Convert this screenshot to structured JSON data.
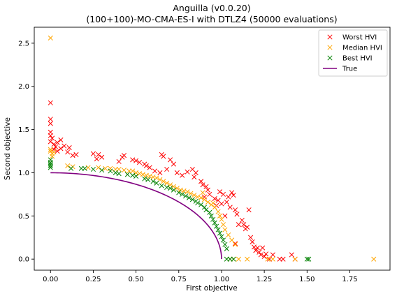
{
  "chart_data": {
    "type": "scatter",
    "title": "Anguilla (v0.0.20)",
    "subtitle": "(100+100)-MO-CMA-ES-I with DTLZ4 (50000 evaluations)",
    "xlabel": "First objective",
    "ylabel": "Second objective",
    "xlim": [
      -0.095,
      1.985
    ],
    "ylim": [
      -0.128,
      2.685
    ],
    "x_ticks": [
      "0.00",
      "0.25",
      "0.50",
      "0.75",
      "1.00",
      "1.25",
      "1.50",
      "1.75"
    ],
    "x_tick_values": [
      0,
      0.25,
      0.5,
      0.75,
      1.0,
      1.25,
      1.5,
      1.75
    ],
    "y_ticks": [
      "0.0",
      "0.5",
      "1.0",
      "1.5",
      "2.0",
      "2.5"
    ],
    "y_tick_values": [
      0,
      0.5,
      1.0,
      1.5,
      2.0,
      2.5
    ],
    "grid": false,
    "legend_position": "top-right",
    "series": [
      {
        "name": "Worst HVI",
        "marker": "x",
        "color": "#ff0000",
        "points": [
          [
            0.0,
            1.81
          ],
          [
            0.0,
            1.62
          ],
          [
            0.0,
            1.57
          ],
          [
            0.0,
            1.47
          ],
          [
            0.0,
            1.43
          ],
          [
            0.01,
            1.4
          ],
          [
            0.0,
            1.36
          ],
          [
            0.02,
            1.33
          ],
          [
            0.03,
            1.3
          ],
          [
            0.02,
            1.27
          ],
          [
            0.04,
            1.25
          ],
          [
            0.06,
            1.28
          ],
          [
            0.08,
            1.31
          ],
          [
            0.1,
            1.24
          ],
          [
            0.06,
            1.38
          ],
          [
            0.04,
            1.35
          ],
          [
            0.11,
            1.29
          ],
          [
            0.15,
            1.21
          ],
          [
            0.13,
            1.2
          ],
          [
            0.25,
            1.22
          ],
          [
            0.28,
            1.21
          ],
          [
            0.3,
            1.18
          ],
          [
            0.27,
            1.16
          ],
          [
            0.42,
            1.18
          ],
          [
            0.43,
            1.2
          ],
          [
            0.4,
            1.13
          ],
          [
            0.48,
            1.15
          ],
          [
            0.5,
            1.14
          ],
          [
            0.52,
            1.12
          ],
          [
            0.55,
            1.1
          ],
          [
            0.56,
            1.08
          ],
          [
            0.58,
            1.06
          ],
          [
            0.61,
            1.02
          ],
          [
            0.64,
            1.0
          ],
          [
            0.65,
            1.21
          ],
          [
            0.66,
            1.19
          ],
          [
            0.7,
            1.15
          ],
          [
            0.72,
            1.1
          ],
          [
            0.68,
            1.04
          ],
          [
            0.74,
            1.0
          ],
          [
            0.77,
            0.97
          ],
          [
            0.8,
            1.01
          ],
          [
            0.83,
            1.04
          ],
          [
            0.85,
            1.0
          ],
          [
            0.84,
            0.95
          ],
          [
            0.88,
            0.9
          ],
          [
            0.89,
            0.86
          ],
          [
            0.91,
            0.84
          ],
          [
            0.92,
            0.8
          ],
          [
            0.93,
            0.75
          ],
          [
            0.9,
            0.72
          ],
          [
            0.96,
            0.7
          ],
          [
            0.98,
            0.68
          ],
          [
            0.99,
            0.78
          ],
          [
            1.01,
            0.75
          ],
          [
            1.03,
            0.66
          ],
          [
            1.04,
            0.72
          ],
          [
            1.05,
            0.6
          ],
          [
            1.06,
            0.77
          ],
          [
            1.07,
            0.74
          ],
          [
            1.02,
            0.5
          ],
          [
            1.08,
            0.57
          ],
          [
            1.09,
            0.52
          ],
          [
            1.1,
            0.4
          ],
          [
            1.12,
            0.45
          ],
          [
            1.13,
            0.4
          ],
          [
            1.14,
            0.35
          ],
          [
            1.15,
            0.37
          ],
          [
            1.16,
            0.57
          ],
          [
            1.17,
            0.25
          ],
          [
            1.18,
            0.2
          ],
          [
            1.19,
            0.14
          ],
          [
            1.2,
            0.1
          ],
          [
            1.21,
            0.13
          ],
          [
            1.22,
            0.08
          ],
          [
            1.23,
            0.05
          ],
          [
            1.24,
            0.13
          ],
          [
            1.25,
            0.03
          ],
          [
            1.26,
            0.06
          ],
          [
            1.28,
            0.0
          ],
          [
            1.3,
            0.05
          ],
          [
            1.34,
            0.0
          ],
          [
            1.36,
            0.0
          ],
          [
            1.41,
            0.05
          ],
          [
            1.43,
            0.0
          ],
          [
            1.0,
            0.64
          ],
          [
            1.08,
            0.18
          ],
          [
            0.97,
            0.62
          ]
        ]
      },
      {
        "name": "Median HVI",
        "marker": "x",
        "color": "#ffa500",
        "points": [
          [
            0.0,
            2.56
          ],
          [
            0.0,
            1.27
          ],
          [
            0.0,
            1.25
          ],
          [
            0.01,
            1.22
          ],
          [
            0.02,
            1.24
          ],
          [
            0.01,
            1.19
          ],
          [
            0.1,
            1.08
          ],
          [
            0.13,
            1.07
          ],
          [
            0.22,
            1.06
          ],
          [
            0.28,
            1.06
          ],
          [
            0.32,
            1.05
          ],
          [
            0.35,
            1.05
          ],
          [
            0.38,
            1.04
          ],
          [
            0.4,
            1.04
          ],
          [
            0.43,
            1.03
          ],
          [
            0.46,
            1.02
          ],
          [
            0.48,
            1.02
          ],
          [
            0.5,
            1.0
          ],
          [
            0.52,
            0.99
          ],
          [
            0.54,
            0.98
          ],
          [
            0.56,
            0.97
          ],
          [
            0.58,
            0.96
          ],
          [
            0.6,
            0.95
          ],
          [
            0.62,
            0.94
          ],
          [
            0.64,
            0.92
          ],
          [
            0.66,
            0.9
          ],
          [
            0.68,
            0.88
          ],
          [
            0.7,
            0.86
          ],
          [
            0.72,
            0.84
          ],
          [
            0.74,
            0.82
          ],
          [
            0.76,
            0.8
          ],
          [
            0.78,
            0.79
          ],
          [
            0.8,
            0.78
          ],
          [
            0.82,
            0.76
          ],
          [
            0.84,
            0.74
          ],
          [
            0.86,
            0.72
          ],
          [
            0.88,
            0.71
          ],
          [
            0.9,
            0.69
          ],
          [
            0.92,
            0.66
          ],
          [
            0.94,
            0.63
          ],
          [
            0.96,
            0.6
          ],
          [
            0.98,
            0.55
          ],
          [
            0.99,
            0.5
          ],
          [
            1.0,
            0.46
          ],
          [
            1.01,
            0.4
          ],
          [
            1.02,
            0.34
          ],
          [
            1.04,
            0.28
          ],
          [
            1.06,
            0.22
          ],
          [
            1.08,
            0.17
          ],
          [
            1.05,
            0.0
          ],
          [
            1.07,
            0.0
          ],
          [
            1.1,
            0.0
          ],
          [
            1.15,
            0.0
          ],
          [
            1.27,
            0.0
          ],
          [
            1.3,
            0.0
          ],
          [
            1.43,
            0.0
          ],
          [
            1.89,
            0.0
          ],
          [
            0.89,
            0.77
          ],
          [
            0.95,
            0.65
          ]
        ]
      },
      {
        "name": "Best HVI",
        "marker": "x",
        "color": "#008000",
        "points": [
          [
            0.0,
            1.15
          ],
          [
            0.0,
            1.12
          ],
          [
            0.0,
            1.1
          ],
          [
            0.0,
            1.08
          ],
          [
            0.0,
            1.06
          ],
          [
            0.12,
            1.05
          ],
          [
            0.18,
            1.05
          ],
          [
            0.2,
            1.05
          ],
          [
            0.25,
            1.04
          ],
          [
            0.3,
            1.03
          ],
          [
            0.35,
            1.02
          ],
          [
            0.38,
            1.0
          ],
          [
            0.4,
            0.99
          ],
          [
            0.45,
            0.98
          ],
          [
            0.48,
            0.97
          ],
          [
            0.5,
            0.96
          ],
          [
            0.55,
            0.93
          ],
          [
            0.57,
            0.92
          ],
          [
            0.6,
            0.9
          ],
          [
            0.62,
            0.88
          ],
          [
            0.65,
            0.85
          ],
          [
            0.68,
            0.83
          ],
          [
            0.7,
            0.82
          ],
          [
            0.72,
            0.8
          ],
          [
            0.75,
            0.77
          ],
          [
            0.77,
            0.75
          ],
          [
            0.79,
            0.73
          ],
          [
            0.81,
            0.71
          ],
          [
            0.83,
            0.69
          ],
          [
            0.85,
            0.67
          ],
          [
            0.86,
            0.65
          ],
          [
            0.88,
            0.63
          ],
          [
            0.9,
            0.6
          ],
          [
            0.91,
            0.57
          ],
          [
            0.93,
            0.54
          ],
          [
            0.94,
            0.5
          ],
          [
            0.95,
            0.46
          ],
          [
            0.96,
            0.42
          ],
          [
            0.97,
            0.38
          ],
          [
            0.98,
            0.34
          ],
          [
            0.99,
            0.3
          ],
          [
            1.0,
            0.26
          ],
          [
            1.01,
            0.22
          ],
          [
            1.02,
            0.17
          ],
          [
            1.03,
            0.12
          ],
          [
            1.03,
            0.0
          ],
          [
            1.05,
            0.0
          ],
          [
            1.07,
            0.0
          ],
          [
            1.5,
            0.0
          ],
          [
            1.51,
            0.0
          ]
        ]
      },
      {
        "name": "True",
        "marker": "line",
        "color": "#800080",
        "curve": "quarter circle of radius 1 from (0, 1) to (1, 0)"
      }
    ]
  }
}
